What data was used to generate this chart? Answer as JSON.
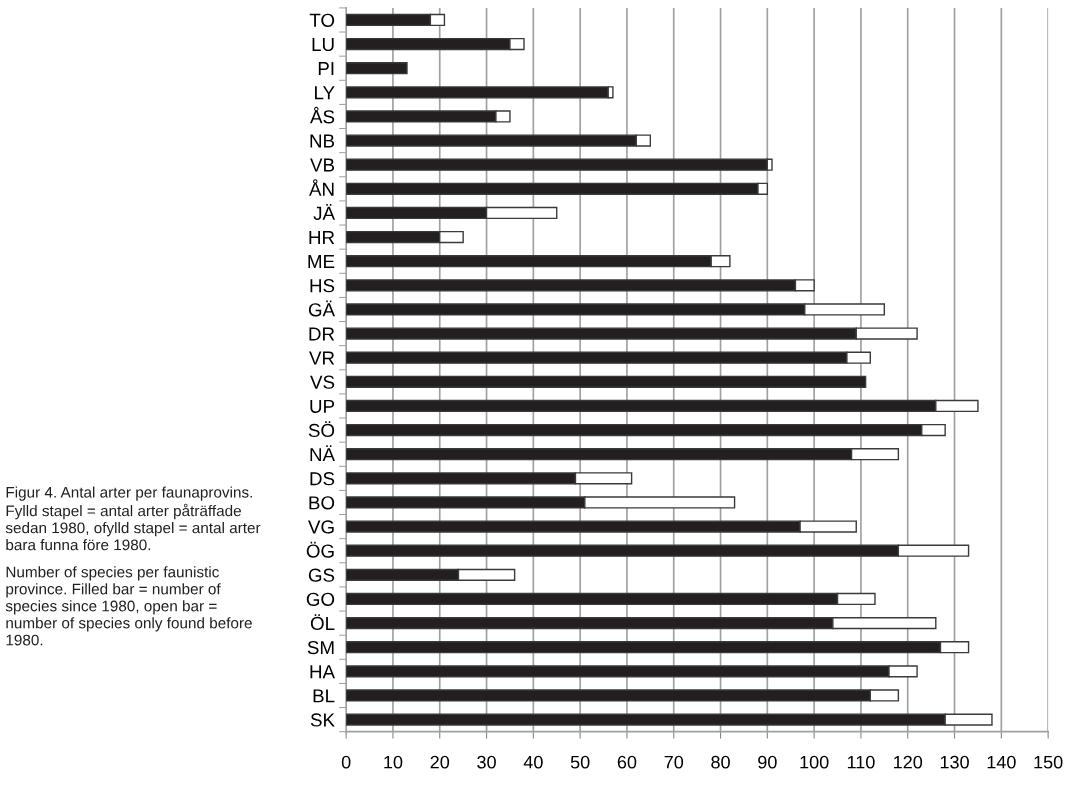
{
  "chart_data": {
    "type": "bar",
    "orientation": "horizontal",
    "stacked": true,
    "categories": [
      "TO",
      "LU",
      "PI",
      "LY",
      "ÅS",
      "NB",
      "VB",
      "ÅN",
      "JÄ",
      "HR",
      "ME",
      "HS",
      "GÄ",
      "DR",
      "VR",
      "VS",
      "UP",
      "SÖ",
      "NÄ",
      "DS",
      "BO",
      "VG",
      "ÖG",
      "GS",
      "GO",
      "ÖL",
      "SM",
      "HA",
      "BL",
      "SK"
    ],
    "series": [
      {
        "color": "#231f20",
        "values": [
          18,
          35,
          13,
          56,
          32,
          62,
          90,
          88,
          30,
          20,
          78,
          96,
          98,
          109,
          107,
          111,
          126,
          123,
          108,
          49,
          51,
          97,
          118,
          24,
          105,
          104,
          127,
          116,
          112,
          128
        ]
      },
      {
        "color": "#ffffff",
        "values": [
          3,
          3,
          null,
          1,
          3,
          3,
          1,
          2,
          15,
          5,
          4,
          4,
          17,
          13,
          5,
          null,
          9,
          5,
          10,
          12,
          32,
          12,
          15,
          12,
          8,
          22,
          6,
          6,
          6,
          10
        ]
      }
    ],
    "xlim": [
      0,
      150
    ],
    "xticks": [
      0,
      10,
      20,
      30,
      40,
      50,
      60,
      70,
      80,
      90,
      100,
      110,
      120,
      130,
      140,
      150
    ],
    "grid": "x",
    "annotations": [
      "Figur 4. Antal arter per faunaprovins. Fylld stapel = antal arter påträffade sedan 1980, ofylld stapel = antal arter bara funna före 1980.",
      "Number of species per faunistic province. Filled bar = number of species since 1980, open bar = number of species only found before 1980."
    ]
  }
}
